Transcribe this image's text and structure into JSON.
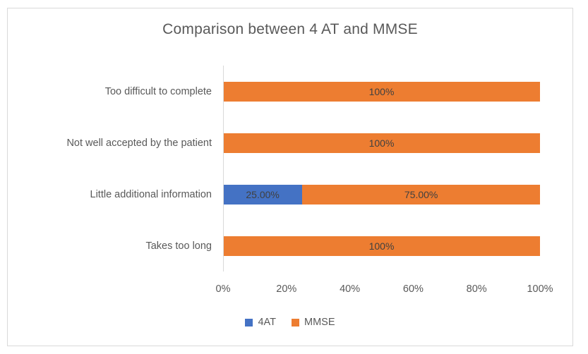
{
  "chart_data": {
    "type": "bar",
    "orientation": "horizontal",
    "stacked": true,
    "title": "Comparison between 4 AT and MMSE",
    "categories": [
      "Too difficult to complete",
      "Not well accepted by the patient",
      "Little additional information",
      "Takes too long"
    ],
    "series": [
      {
        "name": "4AT",
        "color": "#4472C4",
        "values": [
          0,
          0,
          25,
          0
        ]
      },
      {
        "name": "MMSE",
        "color": "#ED7D31",
        "values": [
          100,
          100,
          75,
          100
        ]
      }
    ],
    "data_labels": [
      [
        "",
        "100%"
      ],
      [
        "",
        "100%"
      ],
      [
        "25.00%",
        "75.00%"
      ],
      [
        "",
        "100%"
      ]
    ],
    "x_ticks": [
      "0%",
      "20%",
      "40%",
      "60%",
      "80%",
      "100%"
    ],
    "xlim": [
      0,
      100
    ],
    "grid": false,
    "legend": {
      "position": "bottom",
      "entries": [
        "4AT",
        "MMSE"
      ]
    }
  },
  "colors": {
    "background": "#FFFFFF",
    "frame_border": "#D9D9D9",
    "axis_line": "#D9D9D9",
    "title_text": "#595959",
    "axis_text": "#595959",
    "data_label_text": "#404040",
    "series_4at": "#4472C4",
    "series_mmse": "#ED7D31"
  }
}
